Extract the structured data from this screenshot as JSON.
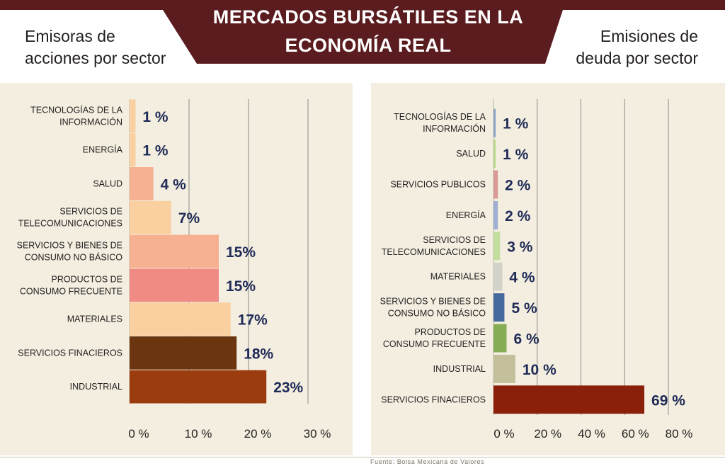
{
  "header": {
    "title_line1": "MERCADOS BURSÁTILES EN LA",
    "title_line2": "ECONOMÍA REAL",
    "left_line1": "Emisoras de",
    "left_line2": "acciones por sector",
    "right_line1": "Emisiones de",
    "right_line2": "deuda por sector"
  },
  "source": "Fuente: Bolsa Mexicana de Valores",
  "colors": {
    "banner": "#5b1c1f",
    "panel_bg": "#f3eedf",
    "value_text": "#1f2a57"
  },
  "chart_data": [
    {
      "type": "bar",
      "orientation": "horizontal",
      "categories": [
        [
          "TECNOLOGÍAS DE LA",
          "INFORMACIÓN"
        ],
        [
          "ENERGÍA"
        ],
        [
          "SALUD"
        ],
        [
          "SERVICIOS DE",
          "TELECOMUNICACIONES"
        ],
        [
          "SERVICIOS Y BIENES DE",
          "CONSUMO NO BÁSICO"
        ],
        [
          "PRODUCTOS DE",
          "CONSUMO FRECUENTE"
        ],
        [
          "MATERIALES"
        ],
        [
          "SERVICIOS FINACIEROS"
        ],
        [
          "INDUSTRIAL"
        ]
      ],
      "values": [
        1,
        1,
        4,
        7,
        15,
        15,
        17,
        18,
        23
      ],
      "value_labels": [
        "1 %",
        "1 %",
        "4 %",
        "7%",
        "15%",
        "15%",
        "17%",
        "18%",
        "23%"
      ],
      "colors": [
        "#fbd0a0",
        "#fbd0a0",
        "#f6b191",
        "#fbd0a0",
        "#f6b191",
        "#f08a85",
        "#fbd0a0",
        "#6b3510",
        "#9b3c0f"
      ],
      "xlim": [
        0,
        30
      ],
      "xticks": [
        0,
        10,
        20,
        30
      ],
      "xtick_labels": [
        "0 %",
        "10 %",
        "20 %",
        "30 %"
      ],
      "grid": true
    },
    {
      "type": "bar",
      "orientation": "horizontal",
      "categories": [
        [
          "TECNOLOGÍAS DE LA",
          "INFORMACIÓN"
        ],
        [
          "SALUD"
        ],
        [
          "SERVICIOS PUBLICOS"
        ],
        [
          "ENERGÍA"
        ],
        [
          "SERVICIOS DE",
          "TELECOMUNICACIONES"
        ],
        [
          "MATERIALES"
        ],
        [
          "SERVICIOS Y BIENES DE",
          "CONSUMO NO BÁSICO"
        ],
        [
          "PRODUCTOS DE",
          "CONSUMO FRECUENTE"
        ],
        [
          "INDUSTRIAL"
        ],
        [
          "SERVICIOS FINACIEROS"
        ]
      ],
      "values": [
        1,
        1,
        2,
        2,
        3,
        4,
        5,
        6,
        10,
        69
      ],
      "value_labels": [
        "1 %",
        "1 %",
        "2 %",
        "2 %",
        "3 %",
        "4 %",
        "5 %",
        "6 %",
        "10 %",
        "69 %"
      ],
      "colors": [
        "#8da4c6",
        "#b9d98f",
        "#d99a96",
        "#9fb0d3",
        "#c3dd9c",
        "#d1d3c8",
        "#46699e",
        "#86ad56",
        "#c2bf9a",
        "#8a1f0a"
      ],
      "xlim": [
        0,
        80
      ],
      "xticks": [
        0,
        20,
        40,
        60,
        80
      ],
      "xtick_labels": [
        "0 %",
        "20 %",
        "40 %",
        "60 %",
        "80 %"
      ],
      "grid": true
    }
  ]
}
